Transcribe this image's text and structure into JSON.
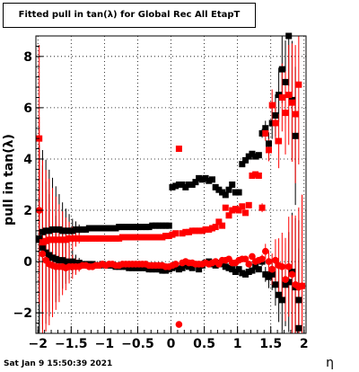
{
  "chart_data": {
    "type": "scatter",
    "title": "Fitted pull in tan(λ) for Global Rec All EtapT",
    "xlabel": "η",
    "ylabel": "pull in tan(λ)",
    "xlim": [
      -2.03,
      2.03
    ],
    "ylim": [
      -2.8,
      8.8
    ],
    "grid": true,
    "xticks": [
      -2,
      -1.5,
      -1,
      -0.5,
      0,
      0.5,
      1,
      1.5,
      2
    ],
    "xtick_labels": [
      "−2",
      "−1.5",
      "−1",
      "−0.5",
      "0",
      "0.5",
      "1",
      "1.5",
      "2"
    ],
    "yticks": [
      -2,
      0,
      2,
      4,
      6,
      8
    ],
    "ytick_labels": [
      "−2",
      "0",
      "2",
      "4",
      "6",
      "8"
    ],
    "series": [
      {
        "color": "#000000",
        "marker": "square",
        "x": [
          -1.98,
          -1.93,
          -1.88,
          -1.83,
          -1.78,
          -1.73,
          -1.68,
          -1.63,
          -1.58,
          -1.53,
          -1.48,
          -1.43,
          -1.38,
          -1.33,
          -1.28,
          -1.23,
          -1.18,
          -1.13,
          -1.08,
          -1.03,
          -0.98,
          -0.93,
          -0.88,
          -0.83,
          -0.78,
          -0.73,
          -0.68,
          -0.63,
          -0.58,
          -0.53,
          -0.48,
          -0.43,
          -0.38,
          -0.33,
          -0.28,
          -0.23,
          -0.18,
          -0.13,
          -0.08,
          -0.03,
          0.02,
          0.07,
          0.12,
          0.17,
          0.22,
          0.27,
          0.32,
          0.37,
          0.42,
          0.47,
          0.52,
          0.57,
          0.62,
          0.67,
          0.72,
          0.77,
          0.82,
          0.87,
          0.92,
          0.97,
          1.02,
          1.07,
          1.12,
          1.17,
          1.22,
          1.27,
          1.32,
          1.37,
          1.42,
          1.47,
          1.52,
          1.57,
          1.62,
          1.67,
          1.72,
          1.77,
          1.82,
          1.87,
          1.92,
          -1.98,
          -1.93,
          -1.88,
          -1.83,
          -1.78,
          -1.73,
          -1.68,
          -1.63,
          -1.58,
          -1.53,
          -1.48,
          -1.43,
          -1.38,
          -1.33,
          -1.28,
          -1.23,
          -1.18,
          -1.13,
          -1.08,
          -1.03,
          -0.98,
          -0.93,
          -0.88,
          -0.83,
          -0.78,
          -0.73,
          -0.68,
          -0.63,
          -0.58,
          -0.53,
          -0.48,
          -0.43,
          -0.38,
          -0.33,
          -0.28,
          -0.23,
          -0.18,
          -0.13,
          -0.08,
          -0.03,
          0.02,
          0.07,
          0.12,
          0.17,
          0.22,
          0.27,
          0.32,
          0.37,
          0.42,
          0.47,
          0.52,
          0.57,
          0.62,
          0.67,
          0.72,
          0.77,
          0.82,
          0.87,
          0.92,
          0.97,
          1.02,
          1.07,
          1.12,
          1.17,
          1.22,
          1.27,
          1.32,
          1.37,
          1.42,
          1.47,
          1.52,
          1.57,
          1.62,
          1.67,
          1.72,
          1.77,
          1.82,
          1.87,
          1.92
        ],
        "y": [
          0.9,
          1.15,
          1.2,
          1.2,
          1.25,
          1.25,
          1.25,
          1.2,
          1.2,
          1.2,
          1.2,
          1.25,
          1.25,
          1.25,
          1.25,
          1.3,
          1.3,
          1.3,
          1.3,
          1.3,
          1.3,
          1.3,
          1.3,
          1.3,
          1.35,
          1.35,
          1.35,
          1.35,
          1.35,
          1.35,
          1.35,
          1.35,
          1.35,
          1.35,
          1.4,
          1.4,
          1.4,
          1.4,
          1.4,
          1.4,
          2.9,
          2.95,
          3.0,
          3.0,
          2.9,
          3.0,
          3.0,
          3.1,
          3.25,
          3.2,
          3.25,
          3.15,
          3.2,
          2.9,
          2.8,
          2.7,
          2.6,
          2.8,
          3.0,
          2.7,
          2.7,
          3.8,
          3.95,
          4.1,
          4.2,
          4.1,
          4.15,
          5.0,
          5.2,
          4.6,
          5.4,
          5.7,
          6.5,
          7.5,
          7.0,
          8.8,
          6.3,
          4.9,
          -2.6,
          0.85,
          0.55,
          0.35,
          0.25,
          0.15,
          0.1,
          0.05,
          0.05,
          0.0,
          -0.05,
          0.0,
          -0.05,
          -0.05,
          -0.1,
          -0.1,
          -0.1,
          -0.1,
          -0.15,
          -0.15,
          -0.1,
          -0.15,
          -0.15,
          -0.15,
          -0.2,
          -0.2,
          -0.2,
          -0.2,
          -0.25,
          -0.25,
          -0.25,
          -0.25,
          -0.25,
          -0.25,
          -0.3,
          -0.3,
          -0.3,
          -0.3,
          -0.35,
          -0.35,
          -0.3,
          -0.25,
          -0.2,
          -0.3,
          -0.25,
          -0.15,
          -0.2,
          -0.25,
          -0.1,
          -0.3,
          -0.15,
          -0.05,
          0.0,
          -0.1,
          -0.15,
          -0.05,
          -0.1,
          -0.2,
          -0.25,
          -0.3,
          -0.4,
          -0.3,
          -0.45,
          -0.5,
          -0.4,
          -0.35,
          -0.2,
          -0.3,
          0.0,
          -0.5,
          -0.6,
          -0.5,
          -0.9,
          -1.3,
          -1.5,
          -0.9,
          -0.8,
          -0.4,
          -1.0,
          -1.5
        ]
      },
      {
        "color": "#ff0000",
        "marker": "square",
        "x": [
          -1.98,
          -1.93,
          -1.88,
          -1.83,
          -1.78,
          -1.73,
          -1.68,
          -1.63,
          -1.58,
          -1.53,
          -1.48,
          -1.43,
          -1.38,
          -1.33,
          -1.28,
          -1.23,
          -1.18,
          -1.13,
          -1.08,
          -1.03,
          -0.98,
          -0.93,
          -0.88,
          -0.83,
          -0.78,
          -0.73,
          -0.68,
          -0.63,
          -0.58,
          -0.53,
          -0.48,
          -0.43,
          -0.38,
          -0.33,
          -0.28,
          -0.23,
          -0.18,
          -0.13,
          -0.08,
          -0.03,
          0.02,
          0.07,
          0.12,
          0.17,
          0.22,
          0.27,
          0.32,
          0.37,
          0.42,
          0.47,
          0.52,
          0.57,
          0.62,
          0.67,
          0.72,
          0.77,
          0.82,
          0.87,
          0.92,
          0.97,
          1.02,
          1.07,
          1.12,
          1.17,
          1.22,
          1.27,
          1.32,
          1.37,
          1.42,
          1.47,
          1.52,
          1.57,
          1.62,
          1.67,
          1.72,
          1.77,
          1.82,
          1.87,
          1.92,
          1.97
        ],
        "y": [
          4.8,
          0.75,
          0.8,
          0.85,
          0.85,
          0.85,
          0.85,
          0.85,
          0.85,
          0.9,
          0.9,
          0.9,
          0.9,
          0.9,
          0.9,
          0.9,
          0.9,
          0.9,
          0.9,
          0.9,
          0.9,
          0.9,
          0.9,
          0.9,
          0.9,
          0.95,
          0.95,
          0.95,
          0.95,
          0.95,
          0.95,
          0.95,
          0.95,
          0.95,
          0.95,
          0.95,
          0.95,
          0.95,
          1.0,
          1.0,
          1.05,
          1.1,
          4.4,
          1.1,
          1.15,
          1.15,
          1.2,
          1.2,
          1.2,
          1.2,
          1.25,
          1.25,
          1.3,
          1.35,
          1.55,
          1.4,
          2.1,
          1.8,
          2.0,
          2.05,
          2.0,
          2.15,
          1.9,
          2.2,
          3.35,
          3.4,
          3.35,
          2.1,
          5.0,
          4.35,
          6.1,
          5.4,
          4.7,
          6.4,
          5.8,
          6.5,
          6.2,
          5.75,
          6.9,
          -0.95
        ],
        "x2": [
          -1.98,
          -1.93,
          -1.88,
          -1.83,
          -1.78,
          -1.73,
          -1.68,
          -1.63,
          -1.58,
          -1.53,
          -1.48,
          -1.43,
          -1.38,
          -1.33,
          -1.28,
          -1.23,
          -1.18,
          -1.13,
          -1.08,
          -1.03,
          -0.98,
          -0.93,
          -0.88,
          -0.83,
          -0.78,
          -0.73,
          -0.68,
          -0.63,
          -0.58,
          -0.53,
          -0.48,
          -0.43,
          -0.38,
          -0.33,
          -0.28,
          -0.23,
          -0.18,
          -0.13,
          -0.08,
          -0.03,
          0.02,
          0.07,
          0.12,
          0.17,
          0.22,
          0.27,
          0.32,
          0.37,
          0.42,
          0.47,
          0.52,
          0.57,
          0.62,
          0.67,
          0.72,
          0.77,
          0.82,
          0.87,
          0.92,
          0.97,
          1.02,
          1.07,
          1.12,
          1.17,
          1.22,
          1.27,
          1.32,
          1.37,
          1.42,
          1.47,
          1.52,
          1.57,
          1.62,
          1.67,
          1.72,
          1.77,
          1.82,
          1.87,
          1.92,
          1.97
        ],
        "y2": [
          2.0,
          0.3,
          0.05,
          -0.1,
          -0.15,
          -0.2,
          -0.2,
          -0.2,
          -0.25,
          -0.2,
          -0.2,
          -0.2,
          -0.2,
          -0.15,
          -0.15,
          -0.2,
          -0.2,
          -0.15,
          -0.15,
          -0.1,
          -0.15,
          -0.1,
          -0.1,
          -0.15,
          -0.15,
          -0.1,
          -0.1,
          -0.1,
          -0.1,
          -0.1,
          -0.1,
          -0.1,
          -0.1,
          -0.15,
          -0.15,
          -0.15,
          -0.15,
          -0.15,
          -0.2,
          -0.2,
          -0.15,
          -0.1,
          -2.45,
          -0.05,
          0.0,
          -0.05,
          -0.05,
          -0.1,
          -0.1,
          -0.1,
          -0.05,
          -0.1,
          -0.05,
          0.0,
          -0.1,
          0.05,
          0.05,
          0.1,
          -0.05,
          -0.05,
          0.05,
          0.1,
          0.1,
          -0.1,
          0.2,
          0.0,
          0.05,
          0.1,
          0.4,
          0.0,
          -0.3,
          0.05,
          -0.15,
          -0.2,
          -0.7,
          -0.2,
          -0.5,
          -0.9,
          -1.0,
          -0.95
        ]
      }
    ]
  },
  "datestamp": "Sat Jan  9 15:50:39 2021"
}
